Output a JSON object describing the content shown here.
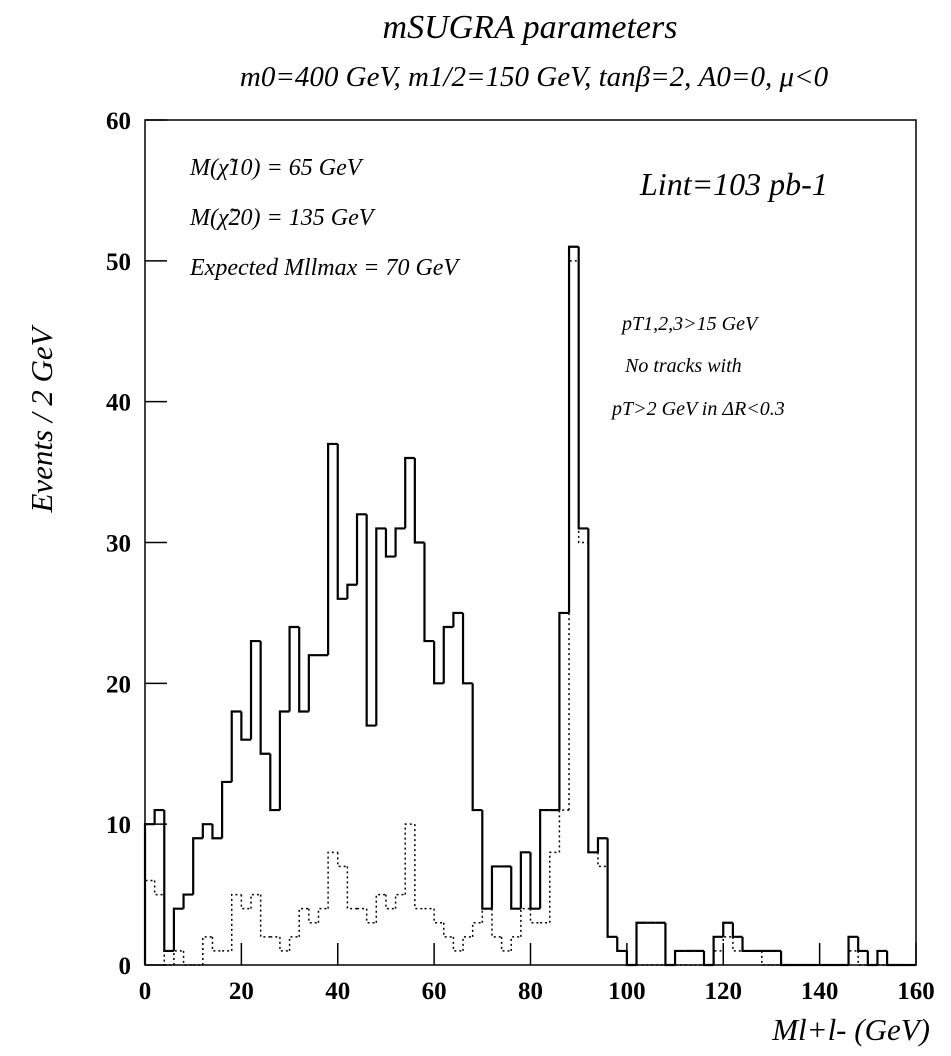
{
  "chart_data": {
    "type": "histogram",
    "title": "mSUGRA  parameters",
    "subtitle": "m0=400 GeV,  m1/2=150 GeV,  tanβ=2,  A0=0,  μ<0",
    "x_label": "Ml+l-  (GeV)",
    "y_label": "Events / 2 GeV",
    "annotations": [
      "M(χ̃10) = 65 GeV",
      "M(χ̃20) = 135 GeV",
      "Expected Mllmax = 70 GeV",
      "Lint=103 pb-1",
      "pT1,2,3>15 GeV",
      "No tracks with",
      "pT>2 GeV  in  ΔR<0.3"
    ],
    "bins": [
      0,
      2,
      4,
      6,
      8,
      10,
      12,
      14,
      16,
      18,
      20,
      22,
      24,
      26,
      28,
      30,
      32,
      34,
      36,
      38,
      40,
      42,
      44,
      46,
      48,
      50,
      52,
      54,
      56,
      58,
      60,
      62,
      64,
      66,
      68,
      70,
      72,
      74,
      76,
      78,
      80,
      82,
      84,
      86,
      88,
      90,
      92,
      94,
      96,
      98,
      100,
      102,
      104,
      106,
      108,
      110,
      112,
      114,
      116,
      118,
      120,
      122,
      124,
      126,
      128,
      130,
      132,
      134,
      136,
      138,
      140,
      142,
      144,
      146,
      148,
      150,
      152,
      154,
      156,
      158,
      160
    ],
    "series": [
      {
        "color": "#000000",
        "style": "solid",
        "values": [
          10,
          11,
          1,
          4,
          5,
          9,
          10,
          9,
          13,
          18,
          16,
          23,
          15,
          11,
          18,
          24,
          18,
          22,
          22,
          37,
          26,
          27,
          32,
          17,
          31,
          29,
          31,
          36,
          30,
          23,
          20,
          24,
          25,
          20,
          11,
          4,
          7,
          7,
          4,
          8,
          4,
          11,
          11,
          25,
          51,
          31,
          8,
          9,
          2,
          1,
          0,
          3,
          3,
          3,
          0,
          1,
          1,
          1,
          0,
          2,
          3,
          2,
          1,
          1,
          1,
          1,
          0,
          0,
          0,
          0,
          0,
          0,
          0,
          2,
          1,
          0,
          1,
          0,
          0,
          0
        ]
      },
      {
        "color": "#000000",
        "style": "dotted",
        "values": [
          6,
          5,
          0,
          1,
          0,
          0,
          2,
          1,
          1,
          5,
          4,
          5,
          2,
          2,
          1,
          2,
          4,
          3,
          4,
          8,
          7,
          4,
          4,
          3,
          5,
          4,
          5,
          10,
          4,
          4,
          3,
          2,
          1,
          2,
          3,
          4,
          2,
          1,
          2,
          4,
          3,
          3,
          8,
          11,
          50,
          30,
          8,
          7,
          2,
          1,
          0,
          0,
          0,
          0,
          0,
          0,
          0,
          0,
          0,
          1,
          2,
          1,
          1,
          1,
          0,
          0,
          0,
          0,
          0,
          0,
          0,
          0,
          0,
          1,
          0,
          0,
          0,
          0,
          0,
          0
        ]
      }
    ],
    "xlim": [
      0,
      160
    ],
    "xticks": [
      0,
      20,
      40,
      60,
      80,
      100,
      120,
      140,
      160
    ],
    "ylim": [
      0,
      60
    ],
    "yticks": [
      0,
      10,
      20,
      30,
      40,
      50,
      60
    ]
  }
}
